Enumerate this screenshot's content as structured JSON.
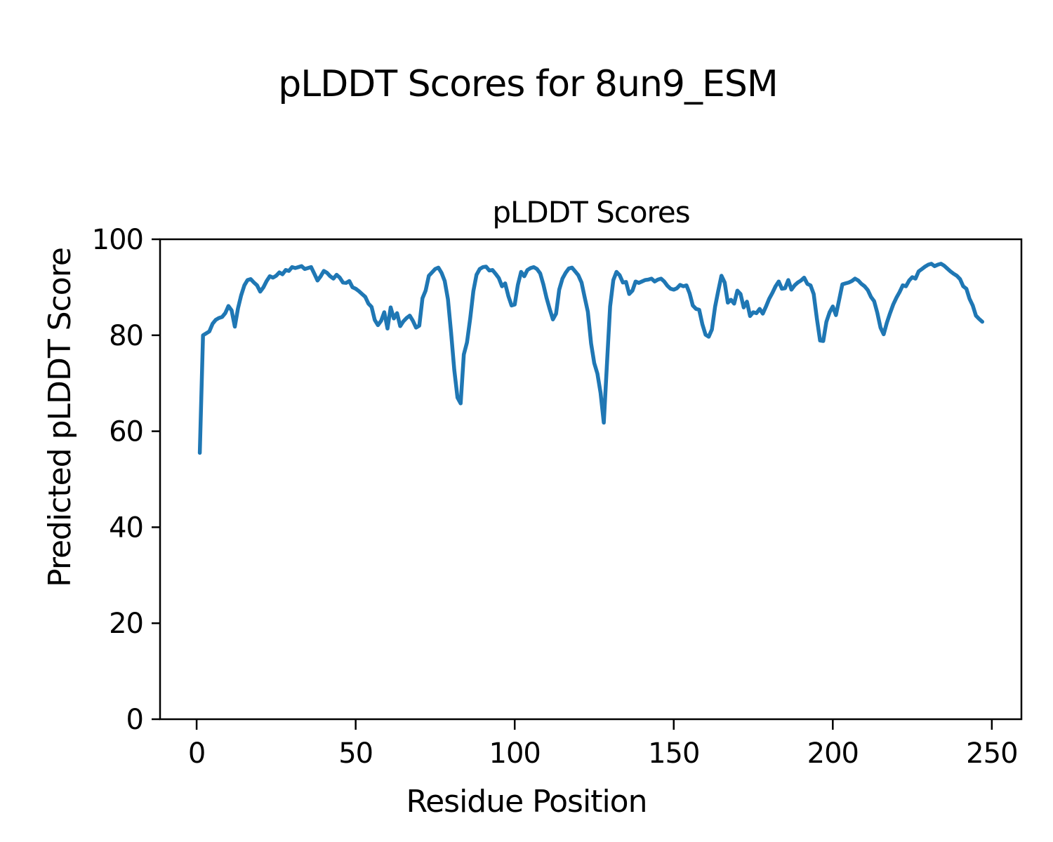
{
  "figure": {
    "suptitle": "pLDDT Scores for 8un9_ESM",
    "background": "#ffffff",
    "text_color": "#000000"
  },
  "chart_data": {
    "type": "line",
    "title": "pLDDT Scores",
    "xlabel": "Residue Position",
    "ylabel": "Predicted pLDDT Score",
    "legend": "none",
    "grid": false,
    "xlim": [
      -11.5,
      259.3
    ],
    "ylim": [
      0,
      100
    ],
    "x_ticks": [
      0,
      50,
      100,
      150,
      200,
      250
    ],
    "y_ticks": [
      0,
      20,
      40,
      60,
      80,
      100
    ],
    "line_color": "#1f77b4",
    "series": [
      {
        "name": "pLDDT",
        "x_start": 1,
        "x_step": 1,
        "x_end": 247,
        "y": [
          55.5,
          80.0,
          80.4,
          80.8,
          82.4,
          83.2,
          83.6,
          83.8,
          84.6,
          86.1,
          85.2,
          81.8,
          85.6,
          88.3,
          90.4,
          91.5,
          91.7,
          91.0,
          90.4,
          89.1,
          90.0,
          91.3,
          92.3,
          92.0,
          92.4,
          93.1,
          92.7,
          93.6,
          93.4,
          94.2,
          94.0,
          94.2,
          94.4,
          93.8,
          94.0,
          94.2,
          92.8,
          91.4,
          92.3,
          93.4,
          93.0,
          92.3,
          91.8,
          92.6,
          92.0,
          91.0,
          90.9,
          91.3,
          90.0,
          89.7,
          89.2,
          88.6,
          88.0,
          86.6,
          85.9,
          83.2,
          82.1,
          83.0,
          84.8,
          81.4,
          85.8,
          83.5,
          84.6,
          81.9,
          82.9,
          83.6,
          84.1,
          83.0,
          81.6,
          82.0,
          87.7,
          89.3,
          92.4,
          93.1,
          93.8,
          94.1,
          93.0,
          91.3,
          87.5,
          80.5,
          72.8,
          67.0,
          65.8,
          76.0,
          78.5,
          83.5,
          89.2,
          92.6,
          93.8,
          94.2,
          94.3,
          93.5,
          93.6,
          92.8,
          91.9,
          90.2,
          90.8,
          88.2,
          86.2,
          86.4,
          90.5,
          93.2,
          92.3,
          93.6,
          94.0,
          94.2,
          93.8,
          92.9,
          90.6,
          87.8,
          85.5,
          83.3,
          84.5,
          89.5,
          91.8,
          93.0,
          93.9,
          94.1,
          93.3,
          92.5,
          91.0,
          87.9,
          84.9,
          78.3,
          74.2,
          72.0,
          68.0,
          61.8,
          74.0,
          86.0,
          91.5,
          93.2,
          92.5,
          91.0,
          91.1,
          88.6,
          89.3,
          91.2,
          90.9,
          91.2,
          91.5,
          91.6,
          91.8,
          91.2,
          91.6,
          91.8,
          91.2,
          90.3,
          89.7,
          89.5,
          89.8,
          90.5,
          90.2,
          90.4,
          88.7,
          86.2,
          85.5,
          85.3,
          82.3,
          80.1,
          79.7,
          81.2,
          86.0,
          89.3,
          92.4,
          91.0,
          86.8,
          87.4,
          86.6,
          89.3,
          88.6,
          85.8,
          87.0,
          84.0,
          84.8,
          84.6,
          85.5,
          84.5,
          86.0,
          87.6,
          88.8,
          90.2,
          91.2,
          89.7,
          89.8,
          91.5,
          89.5,
          90.4,
          91.0,
          91.4,
          92.0,
          90.7,
          90.4,
          88.6,
          83.4,
          78.9,
          78.8,
          82.8,
          84.8,
          86.0,
          84.2,
          87.4,
          90.6,
          90.8,
          91.0,
          91.3,
          91.8,
          91.4,
          90.7,
          90.2,
          89.4,
          88.0,
          87.1,
          84.7,
          81.6,
          80.2,
          82.6,
          84.6,
          86.4,
          87.8,
          89.0,
          90.4,
          90.2,
          91.4,
          92.1,
          91.8,
          93.3,
          93.8,
          94.3,
          94.7,
          94.9,
          94.4,
          94.7,
          94.9,
          94.5,
          93.9,
          93.3,
          92.8,
          92.4,
          91.7,
          90.2,
          89.7,
          87.6,
          86.2,
          84.1,
          83.4,
          82.8
        ]
      }
    ]
  }
}
